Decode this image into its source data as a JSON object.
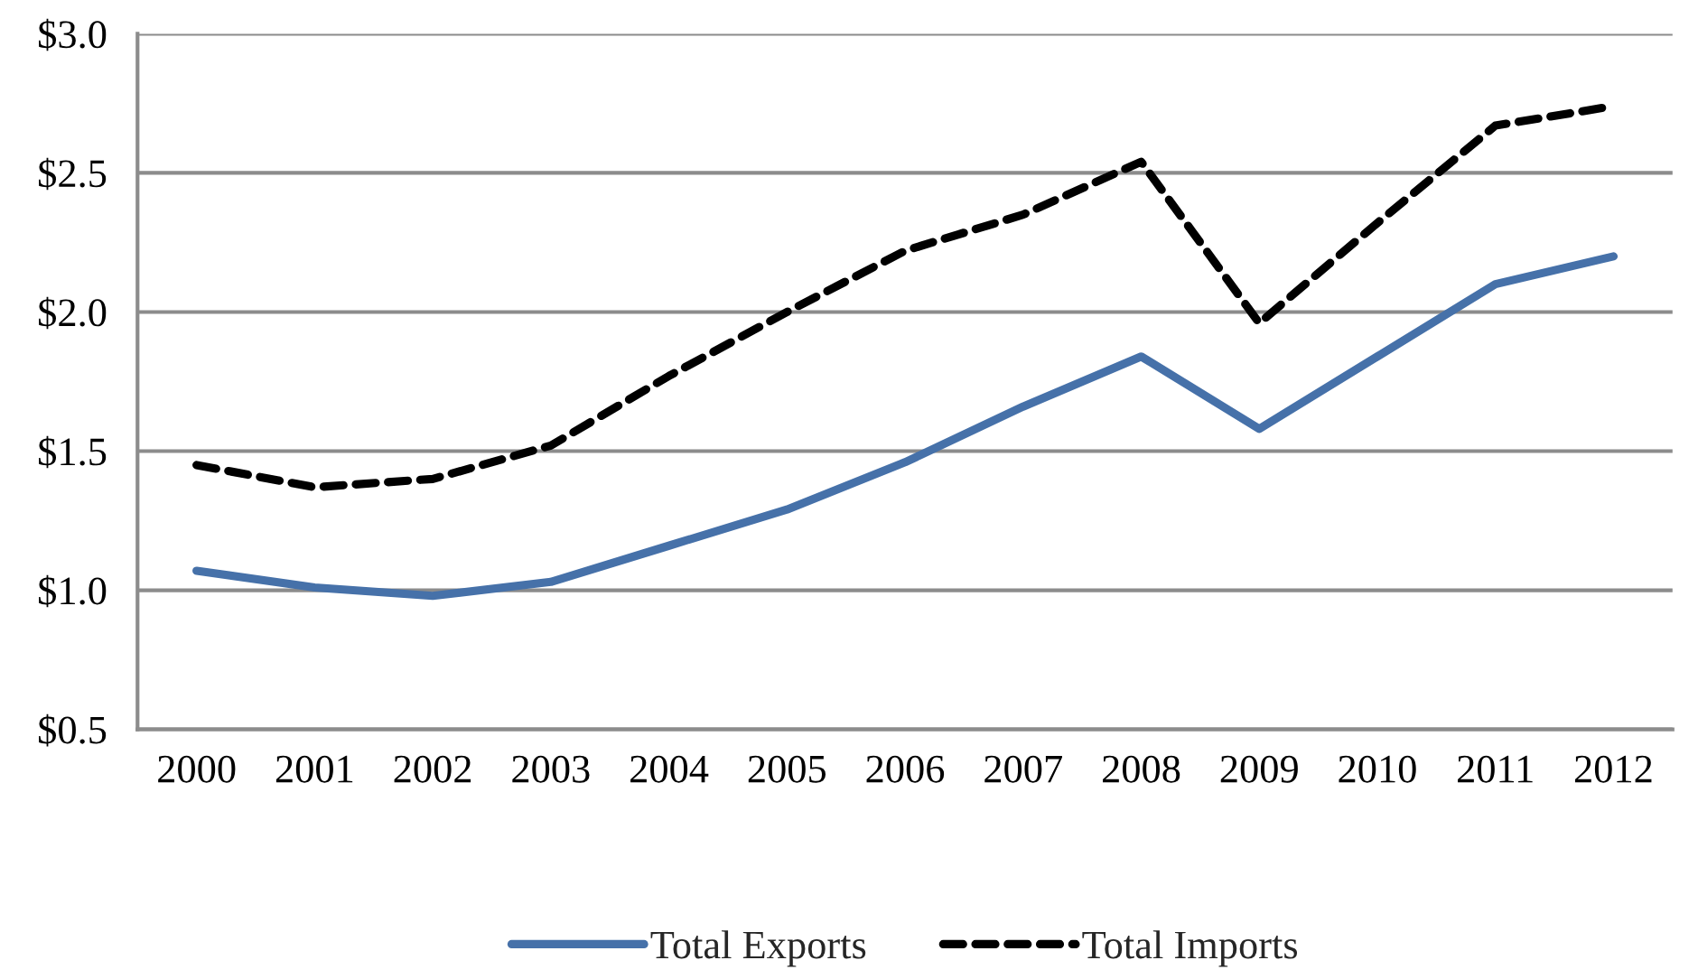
{
  "chart_data": {
    "type": "line",
    "categories": [
      "2000",
      "2001",
      "2002",
      "2003",
      "2004",
      "2005",
      "2006",
      "2007",
      "2008",
      "2009",
      "2010",
      "2011",
      "2012"
    ],
    "series": [
      {
        "name": "Total Exports",
        "color": "#4671a9",
        "line_style": "solid",
        "values": [
          1.07,
          1.01,
          0.98,
          1.03,
          1.16,
          1.29,
          1.46,
          1.66,
          1.84,
          1.58,
          1.84,
          2.1,
          2.2
        ]
      },
      {
        "name": "Total Imports",
        "color": "#000000",
        "line_style": "dashed",
        "values": [
          1.45,
          1.37,
          1.4,
          1.52,
          1.77,
          2.0,
          2.22,
          2.35,
          2.54,
          1.96,
          2.32,
          2.67,
          2.74
        ]
      }
    ],
    "ylim": [
      0.5,
      3.0
    ],
    "yticks": [
      {
        "value": 0.5,
        "label": "$0.5"
      },
      {
        "value": 1.0,
        "label": "$1.0"
      },
      {
        "value": 1.5,
        "label": "$1.5"
      },
      {
        "value": 2.0,
        "label": "$2.0"
      },
      {
        "value": 2.5,
        "label": "$2.5"
      },
      {
        "value": 3.0,
        "label": "$3.0"
      }
    ],
    "grid": "y",
    "legend": "bottom"
  }
}
